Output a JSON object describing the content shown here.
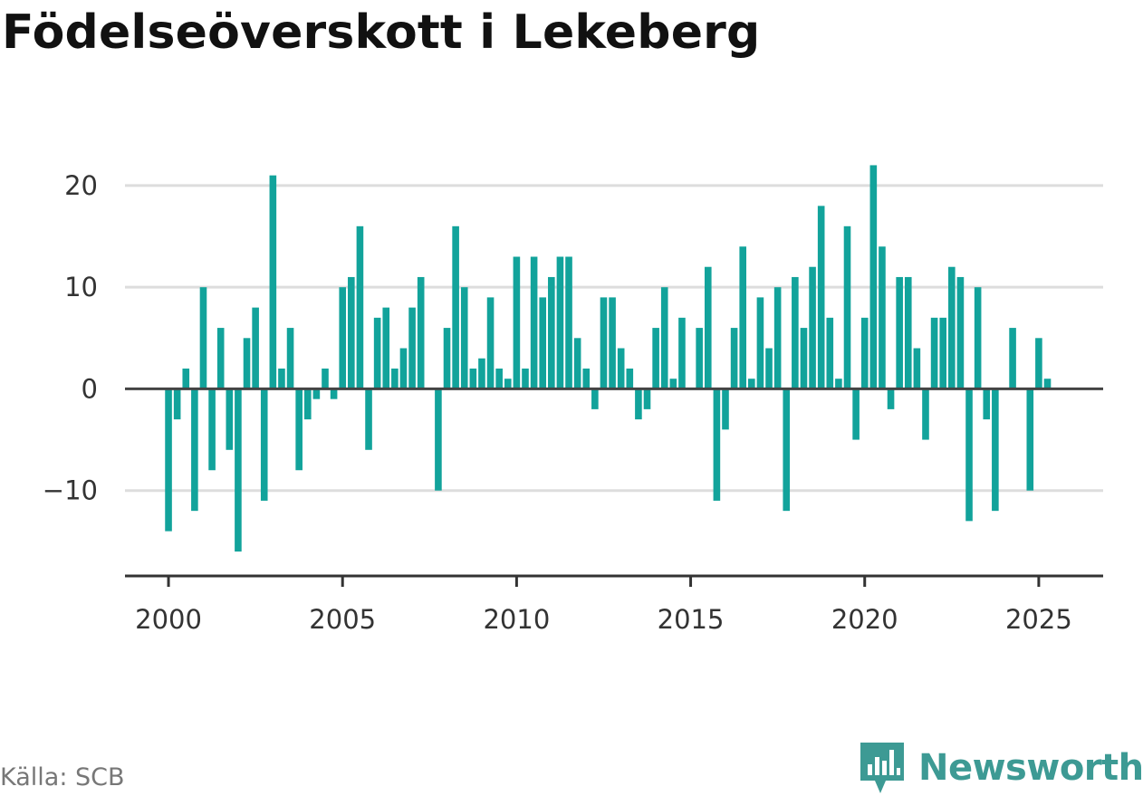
{
  "title": "Födelseöverskott i Lekeberg",
  "source": "Källa: SCB",
  "brand": {
    "name": "Newsworthy",
    "icon": "newsworthy-logo-icon",
    "color": "#3d9a94"
  },
  "colors": {
    "bar": "#12a39b",
    "zero_line": "#444444",
    "grid": "#dddddd",
    "axis": "#333333"
  },
  "chart_data": {
    "type": "bar",
    "title": "Födelseöverskott i Lekeberg",
    "xlabel": "",
    "ylabel": "",
    "frequency": "quarterly",
    "start": {
      "year": 2000,
      "quarter": 1
    },
    "xlim": [
      1998.75,
      2026.85
    ],
    "ylim": [
      -18.4,
      24
    ],
    "x_ticks": [
      "2000",
      "2005",
      "2010",
      "2015",
      "2020",
      "2025"
    ],
    "y_ticks": [
      20,
      10,
      0,
      -10
    ],
    "y_tick_labels": [
      "20",
      "10",
      "0",
      "−10"
    ],
    "grid": true,
    "values": [
      -14,
      -3,
      2,
      -12,
      10,
      -8,
      6,
      -6,
      -16,
      5,
      8,
      -11,
      21,
      2,
      6,
      -8,
      -3,
      -1,
      2,
      -1,
      10,
      11,
      16,
      -6,
      7,
      8,
      2,
      4,
      8,
      11,
      0,
      -10,
      6,
      16,
      10,
      2,
      3,
      9,
      2,
      1,
      13,
      2,
      13,
      9,
      11,
      13,
      13,
      5,
      2,
      -2,
      9,
      9,
      4,
      2,
      -3,
      -2,
      6,
      10,
      1,
      7,
      0,
      6,
      12,
      -11,
      -4,
      6,
      14,
      1,
      9,
      4,
      10,
      -12,
      11,
      6,
      12,
      18,
      7,
      1,
      16,
      -5,
      7,
      22,
      14,
      -2,
      11,
      11,
      4,
      -5,
      7,
      7,
      12,
      11,
      -13,
      10,
      -3,
      -12,
      0,
      6,
      0,
      -10,
      5,
      1
    ]
  }
}
